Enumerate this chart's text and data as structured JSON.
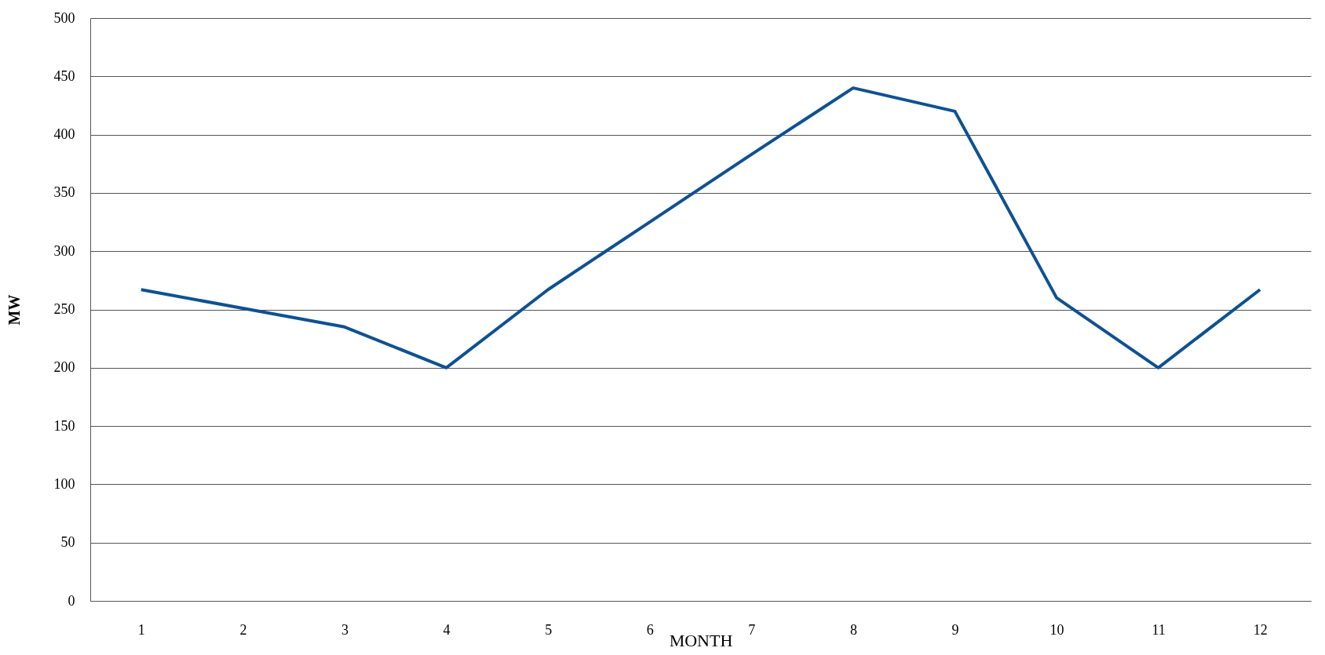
{
  "chart_data": {
    "type": "line",
    "xlabel": "MONTH",
    "ylabel": "MW",
    "categories": [
      "1",
      "2",
      "3",
      "4",
      "5",
      "6",
      "7",
      "8",
      "9",
      "10",
      "11",
      "12"
    ],
    "series": [
      {
        "color": "#0e5192",
        "values": [
          267,
          251,
          235,
          200,
          267,
          325,
          383,
          440,
          420,
          260,
          200,
          267
        ]
      }
    ],
    "ylim": [
      0,
      500
    ],
    "yticks": [
      0,
      50,
      100,
      150,
      200,
      250,
      300,
      350,
      400,
      450,
      500
    ],
    "grid": "y",
    "legend": false,
    "marker": "none",
    "line_style": "solid"
  }
}
